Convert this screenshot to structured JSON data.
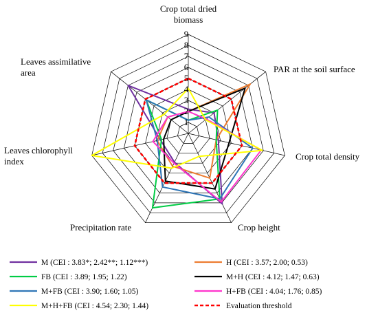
{
  "chart_data": {
    "type": "radar",
    "axes": [
      {
        "label_lines": [
          "Crop total dried",
          "biomass"
        ]
      },
      {
        "label_lines": [
          "PAR at the soil surface"
        ]
      },
      {
        "label_lines": [
          "Crop total density"
        ]
      },
      {
        "label_lines": [
          "Crop height"
        ]
      },
      {
        "label_lines": [
          "Precipitation rate"
        ]
      },
      {
        "label_lines": [
          "Leaves chlorophyll",
          "index"
        ]
      },
      {
        "label_lines": [
          "Leaves assimilative",
          "area"
        ]
      }
    ],
    "ticks": [
      "1",
      "2",
      "3",
      "4",
      "5",
      "6",
      "7",
      "8",
      "9"
    ],
    "rmin": 0,
    "rmax": 9,
    "series": [
      {
        "name": "M (CEI : 3.83*; 2.42**; 1.12***)",
        "color": "#7030a0",
        "dashed": false,
        "values": [
          2.2,
          3.0,
          2.8,
          7.1,
          2.9,
          2.6,
          7.0
        ]
      },
      {
        "name": "H (CEI : 3.57; 2.00; 0.53)",
        "color": "#ed7d31",
        "dashed": false,
        "values": [
          2.0,
          7.2,
          2.6,
          4.5,
          3.3,
          2.9,
          2.4
        ]
      },
      {
        "name": "FB (CEI : 3.89; 1.95; 1.22)",
        "color": "#00cc44",
        "dashed": false,
        "values": [
          1.2,
          3.4,
          2.6,
          6.6,
          7.5,
          2.5,
          4.9
        ]
      },
      {
        "name": "M+H (CEI : 4.12; 1.47; 0.63)",
        "color": "#000000",
        "dashed": false,
        "values": [
          2.0,
          6.6,
          3.8,
          5.6,
          4.8,
          2.3,
          2.0
        ]
      },
      {
        "name": "M+FB (CEI : 3.90; 1.60; 1.05)",
        "color": "#2e75b6",
        "dashed": false,
        "values": [
          1.2,
          2.4,
          6.0,
          6.6,
          5.4,
          2.9,
          4.9
        ]
      },
      {
        "name": "H+FB (CEI : 4.04; 1.76; 0.85)",
        "color": "#ff33cc",
        "dashed": false,
        "values": [
          2.0,
          2.1,
          6.8,
          6.9,
          3.0,
          3.3,
          2.4
        ]
      },
      {
        "name": "M+H+FB (CEI : 4.54; 2.30; 1.44)",
        "color": "#ffff00",
        "dashed": false,
        "values": [
          4.1,
          2.0,
          6.9,
          2.3,
          3.5,
          9.0,
          2.8
        ]
      },
      {
        "name": "Evaluation threshold",
        "color": "#ff0000",
        "dashed": true,
        "values": [
          5,
          5,
          5,
          5,
          5,
          5,
          5
        ]
      }
    ],
    "legend_position": "bottom",
    "grid": true
  }
}
